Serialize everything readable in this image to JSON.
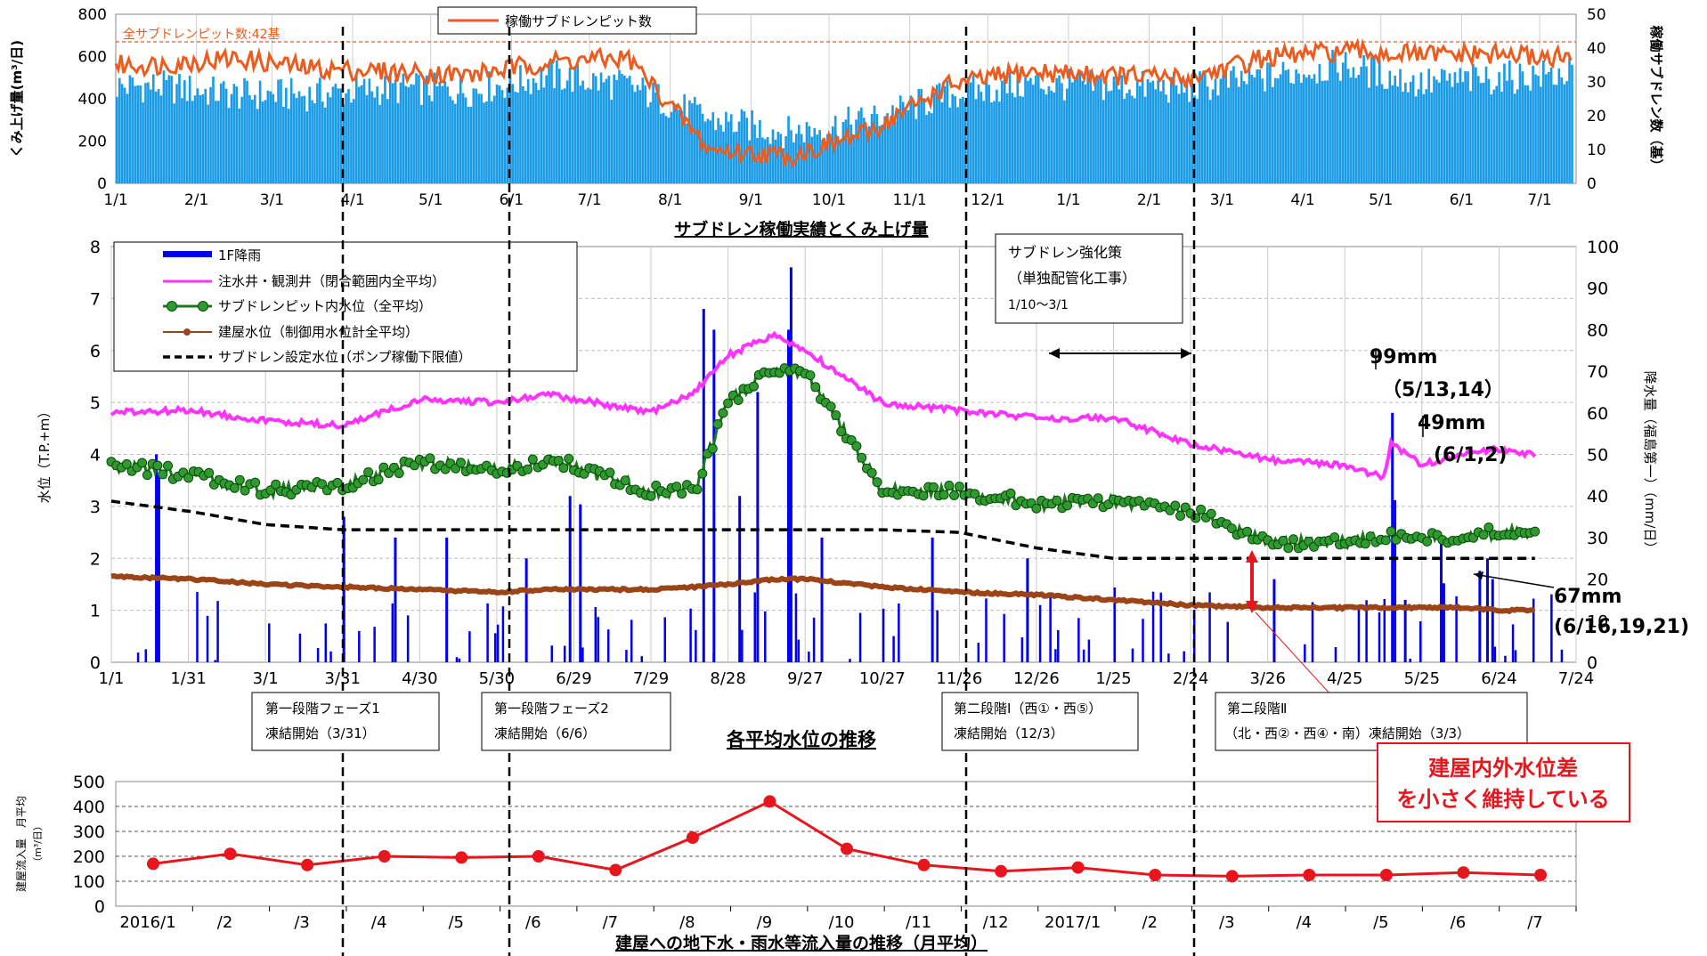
{
  "top": {
    "legend": "稼働サブドレンピット数",
    "total_label": "全サブドレンピット数:42基",
    "left_axis": "くみ上げ量(m³/日)",
    "right_axis": "稼働サブドレン数（基）",
    "title": "サブドレン稼働実績とくみ上げ量",
    "left_ticks": [
      "0",
      "200",
      "400",
      "600",
      "800"
    ],
    "right_ticks": [
      "0",
      "10",
      "20",
      "30",
      "40",
      "50"
    ],
    "x_ticks": [
      "1/1",
      "2/1",
      "3/1",
      "4/1",
      "5/1",
      "6/1",
      "7/1",
      "8/1",
      "9/1",
      "10/1",
      "11/1",
      "12/1",
      "1/1",
      "2/1",
      "3/1",
      "4/1",
      "5/1",
      "6/1",
      "7/1"
    ]
  },
  "mid": {
    "legend": [
      "1F降雨",
      "注水井・観測井（閉合範囲内全平均）",
      "サブドレンピット内水位（全平均）",
      "建屋水位（制御用水位計全平均）",
      "サブドレン設定水位（ポンプ稼働下限値）"
    ],
    "left_axis": "水位（T.P.+m）",
    "right_axis": "降水量（福島第一）（mm/日）",
    "title": "各平均水位の推移",
    "left_ticks": [
      "0",
      "1",
      "2",
      "3",
      "4",
      "5",
      "6",
      "7",
      "8"
    ],
    "right_ticks": [
      "0",
      "10",
      "20",
      "30",
      "40",
      "50",
      "60",
      "70",
      "80",
      "90",
      "100"
    ],
    "x_ticks": [
      "1/1",
      "1/31",
      "3/1",
      "3/31",
      "4/30",
      "5/30",
      "6/29",
      "7/29",
      "8/28",
      "9/27",
      "10/27",
      "11/26",
      "12/26",
      "1/25",
      "2/24",
      "3/26",
      "4/25",
      "5/25",
      "6/24",
      "7/24"
    ],
    "measure_box": [
      "サブドレン強化策",
      "（単独配管化工事）",
      "1/10〜3/1"
    ],
    "rain_99": "99mm",
    "rain_99_date": "（5/13,14）",
    "rain_49": "49mm",
    "rain_49_date": "(6/1,2)",
    "rain_67": "67mm",
    "rain_67_date": "(6/16,19,21)"
  },
  "phases": [
    {
      "line1": "第一段階フェーズ1",
      "line2": "凍結開始（3/31）"
    },
    {
      "line1": "第一段階フェーズ2",
      "line2": "凍結開始（6/6）"
    },
    {
      "line1": "第二段階Ⅰ（西①・西⑤）",
      "line2": "凍結開始（12/3）"
    },
    {
      "line1": "第二段階Ⅱ",
      "line2": "（北・西②・西④・南）凍結開始（3/3）"
    }
  ],
  "callout": [
    "建屋内外水位差",
    "を小さく維持している"
  ],
  "bottom": {
    "title": "建屋への地下水・雨水等流入量の推移（月平均）",
    "left_axis": "建屋流入量　月平均",
    "left_axis_unit": "（m³/日）",
    "left_ticks": [
      "0",
      "100",
      "200",
      "300",
      "400",
      "500"
    ],
    "x_ticks": [
      "2016/1",
      "/2",
      "/3",
      "/4",
      "/5",
      "/6",
      "/7",
      "/8",
      "/9",
      "/10",
      "/11",
      "/12",
      "2017/1",
      "/2",
      "/3",
      "/4",
      "/5",
      "/6",
      "/7"
    ]
  },
  "colors": {
    "pump_bar": "#1a9be6",
    "pit_count": "#ec5c1e",
    "rain": "#0000ee",
    "well": "#ff33ff",
    "pit_level": "#1a7a1a",
    "pit_marker": "#2f9a2f",
    "building": "#9b4418",
    "setting": "#000000",
    "inflow": "#e8161c"
  },
  "chart_data": [
    {
      "type": "bar",
      "title": "サブドレン稼働実績とくみ上げ量",
      "ylabel": "くみ上げ量(m³/日)",
      "y2label": "稼働サブドレン数（基）",
      "ylim": [
        0,
        800
      ],
      "y2lim": [
        0,
        50
      ],
      "x_range": [
        "2016/1/1",
        "2017/7/15"
      ],
      "categories": [
        "2016/1",
        "2016/2",
        "2016/3",
        "2016/4",
        "2016/5",
        "2016/6",
        "2016/7",
        "2016/8",
        "2016/9",
        "2016/10",
        "2016/11",
        "2016/12",
        "2017/1",
        "2017/2",
        "2017/3",
        "2017/4",
        "2017/5",
        "2017/6",
        "2017/7"
      ],
      "series": [
        {
          "name": "くみ上げ量",
          "values": [
            460,
            420,
            420,
            450,
            440,
            510,
            460,
            300,
            240,
            300,
            420,
            470,
            460,
            450,
            500,
            560,
            470,
            500,
            520
          ]
        },
        {
          "name": "稼働サブドレンピット数",
          "values": [
            35,
            37,
            34,
            33,
            32,
            36,
            37,
            10,
            8,
            15,
            29,
            33,
            32,
            31,
            37,
            39,
            38,
            38,
            37
          ]
        }
      ],
      "reference_line": {
        "label": "全サブドレンピット数:42基",
        "value": 42
      }
    },
    {
      "type": "line",
      "title": "各平均水位の推移",
      "ylabel": "水位（T.P.+m）",
      "y2label": "降水量（福島第一）（mm/日）",
      "ylim": [
        0,
        8
      ],
      "y2lim": [
        0,
        100
      ],
      "x": [
        "2016/1/1",
        "2016/2/1",
        "2016/3/1",
        "2016/3/31",
        "2016/4/30",
        "2016/5/30",
        "2016/6/20",
        "2016/7/29",
        "2016/8/15",
        "2016/8/28",
        "2016/9/15",
        "2016/9/27",
        "2016/10/27",
        "2016/11/26",
        "2016/12/26",
        "2017/1/25",
        "2017/2/24",
        "2017/3/26",
        "2017/4/25",
        "2017/5/10",
        "2017/5/13",
        "2017/5/25",
        "2017/6/10",
        "2017/6/24",
        "2017/7/8"
      ],
      "series": [
        {
          "name": "注水井・観測井（閉合範囲内全平均）",
          "values": [
            4.8,
            4.85,
            4.65,
            4.55,
            5.05,
            5.0,
            5.15,
            4.8,
            5.2,
            5.9,
            6.3,
            6.0,
            5.0,
            4.85,
            4.7,
            4.7,
            4.2,
            3.9,
            3.8,
            3.55,
            4.2,
            3.8,
            4.0,
            4.1,
            4.0
          ]
        },
        {
          "name": "サブドレンピット内水位（全平均）",
          "values": [
            3.8,
            3.6,
            3.3,
            3.4,
            3.85,
            3.7,
            3.9,
            3.3,
            3.3,
            5.0,
            5.7,
            5.6,
            3.3,
            3.3,
            3.05,
            3.1,
            2.9,
            2.3,
            2.3,
            2.4,
            2.4,
            2.4,
            2.4,
            2.5,
            2.5
          ]
        },
        {
          "name": "建屋水位（制御用水位計全平均）",
          "values": [
            1.65,
            1.6,
            1.5,
            1.45,
            1.4,
            1.35,
            1.4,
            1.4,
            1.45,
            1.5,
            1.6,
            1.6,
            1.45,
            1.35,
            1.3,
            1.2,
            1.1,
            1.05,
            1.05,
            1.05,
            1.05,
            1.05,
            1.05,
            1.0,
            1.0
          ]
        },
        {
          "name": "サブドレン設定水位（ポンプ稼働下限値）",
          "values": [
            3.1,
            2.9,
            2.65,
            2.55,
            2.55,
            2.55,
            2.55,
            2.55,
            2.55,
            2.55,
            2.55,
            2.55,
            2.55,
            2.5,
            2.2,
            2.0,
            2.0,
            2.0,
            2.0,
            2.0,
            2.0,
            2.0,
            2.0,
            2.0,
            2.0
          ]
        }
      ],
      "rain": {
        "name": "1F降雨",
        "dates": [
          "2016/1/18",
          "2016/1/19",
          "2016/3/31",
          "2016/4/20",
          "2016/5/10",
          "2016/6/10",
          "2016/6/27",
          "2016/7/1",
          "2016/8/18",
          "2016/8/22",
          "2016/9/1",
          "2016/9/8",
          "2016/9/20",
          "2016/9/21",
          "2016/10/3",
          "2016/11/15",
          "2016/12/22",
          "2017/3/28",
          "2017/5/13",
          "2017/5/14",
          "2017/5/18",
          "2017/6/1",
          "2017/6/2",
          "2017/6/16",
          "2017/6/19",
          "2017/6/21"
        ],
        "values": [
          50,
          45,
          35,
          30,
          30,
          25,
          40,
          38,
          85,
          80,
          40,
          65,
          80,
          95,
          30,
          30,
          25,
          20,
          60,
          39,
          15,
          30,
          19,
          22,
          25,
          20
        ]
      }
    },
    {
      "type": "line",
      "title": "建屋への地下水・雨水等流入量の推移（月平均）",
      "ylabel": "建屋流入量　月平均（m³/日）",
      "ylim": [
        0,
        500
      ],
      "categories": [
        "2016/1",
        "/2",
        "/3",
        "/4",
        "/5",
        "/6",
        "/7",
        "/8",
        "/9",
        "/10",
        "/11",
        "/12",
        "2017/1",
        "/2",
        "/3",
        "/4",
        "/5",
        "/6",
        "/7"
      ],
      "series": [
        {
          "name": "建屋流入量",
          "values": [
            170,
            210,
            165,
            200,
            195,
            200,
            145,
            275,
            420,
            230,
            165,
            140,
            155,
            125,
            120,
            125,
            125,
            135,
            125
          ]
        }
      ]
    }
  ]
}
